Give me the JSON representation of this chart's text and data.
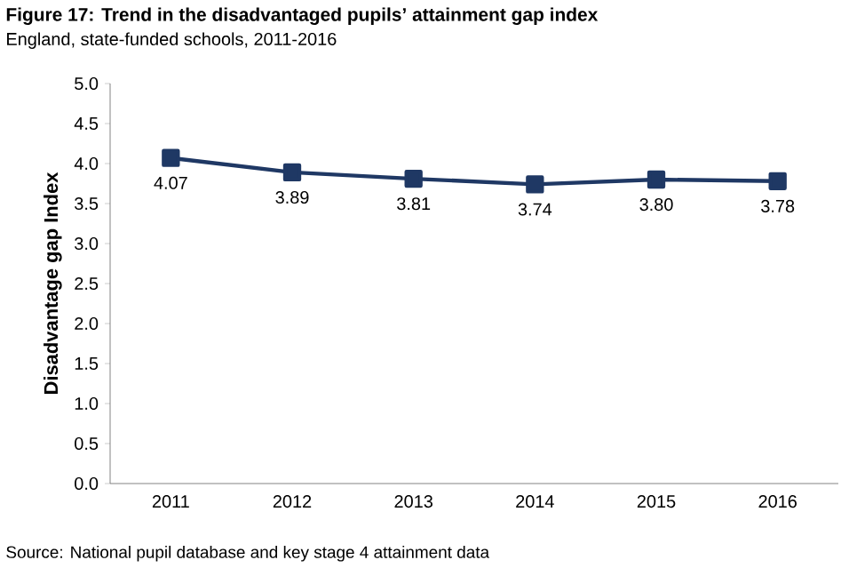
{
  "chart_data": {
    "type": "line",
    "title": "Figure 17: Trend in the disadvantaged pupils’ attainment gap index",
    "subtitle": "England, state-funded schools, 2011-2016",
    "ylabel": "Disadvantage gap Index",
    "annotations": [
      "Source: National pupil database and key stage 4 attainment data"
    ],
    "categories": [
      "2011",
      "2012",
      "2013",
      "2014",
      "2015",
      "2016"
    ],
    "series": [
      {
        "color": "#1f3864",
        "values": [
          4.07,
          3.89,
          3.81,
          3.74,
          3.8,
          3.78
        ],
        "value_labels": [
          "4.07",
          "3.89",
          "3.81",
          "3.74",
          "3.80",
          "3.78"
        ]
      }
    ],
    "ylim": [
      0,
      5
    ],
    "yticks": [
      {
        "value": 0,
        "label": "0.0"
      },
      0.5,
      {
        "value": 1,
        "label": "1.0"
      },
      1.5,
      {
        "value": 2,
        "label": "2.0"
      },
      2.5,
      {
        "value": 3,
        "label": "3.0"
      },
      3.5,
      {
        "value": 4,
        "label": "4.0"
      },
      4.5,
      {
        "value": 5,
        "label": "5.0"
      }
    ],
    "marker": "square",
    "line_style": "solid"
  }
}
